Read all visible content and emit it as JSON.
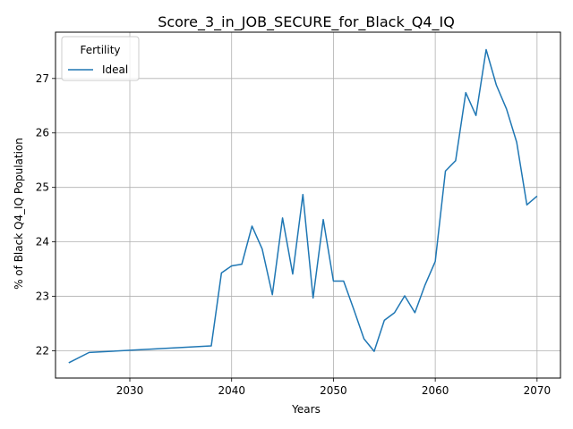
{
  "chart_data": {
    "type": "line",
    "title": "Score_3_in_JOB_SECURE_for_Black_Q4_IQ",
    "xlabel": "Years",
    "ylabel": "% of Black Q4_IQ Population",
    "xlim": [
      2022.7,
      2072.3
    ],
    "ylim": [
      21.5,
      27.85
    ],
    "xticks": [
      2030,
      2040,
      2050,
      2060,
      2070
    ],
    "yticks": [
      22,
      23,
      24,
      25,
      26,
      27
    ],
    "grid": true,
    "legend": {
      "title": "Fertility",
      "position": "top-left"
    },
    "series": [
      {
        "name": "Ideal",
        "color": "#1f77b4",
        "x": [
          2024,
          2026,
          2038,
          2039,
          2040,
          2041,
          2042,
          2043,
          2044,
          2045,
          2046,
          2047,
          2048,
          2049,
          2050,
          2051,
          2052,
          2053,
          2054,
          2055,
          2056,
          2057,
          2058,
          2059,
          2060,
          2061,
          2062,
          2063,
          2064,
          2065,
          2066,
          2067,
          2068,
          2069,
          2070
        ],
        "y": [
          21.78,
          21.97,
          22.09,
          23.43,
          23.56,
          23.59,
          24.29,
          23.87,
          23.03,
          24.44,
          23.41,
          24.87,
          22.97,
          24.41,
          23.28,
          23.28,
          22.76,
          22.22,
          21.99,
          22.56,
          22.7,
          23.01,
          22.7,
          23.21,
          23.64,
          25.3,
          25.49,
          26.74,
          26.32,
          27.53,
          26.88,
          26.44,
          25.83,
          24.68,
          24.84
        ]
      }
    ]
  }
}
